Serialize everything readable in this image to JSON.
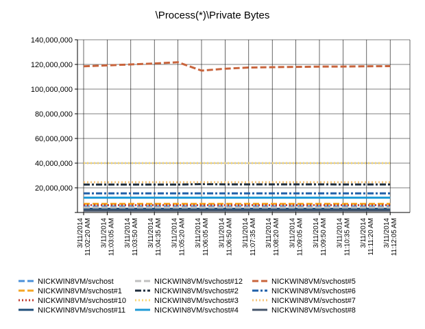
{
  "chart_data": {
    "type": "line",
    "title": "\\Process(*)\\Private Bytes",
    "ylim": [
      0,
      140000000
    ],
    "y_ticks": [
      {
        "value": 140000000,
        "label": "140,000,000"
      },
      {
        "value": 120000000,
        "label": "120,000,000"
      },
      {
        "value": 100000000,
        "label": "100,000,000"
      },
      {
        "value": 80000000,
        "label": "80,000,000"
      },
      {
        "value": 60000000,
        "label": "60,000,000"
      },
      {
        "value": 40000000,
        "label": "40,000,000"
      },
      {
        "value": 20000000,
        "label": "20,000,000"
      }
    ],
    "x_tick_labels": [
      {
        "date": "3/11/2014",
        "time": "11:02:20 AM"
      },
      {
        "date": "3/11/2014",
        "time": "11:03:05 AM"
      },
      {
        "date": "3/11/2014",
        "time": "11:03:50 AM"
      },
      {
        "date": "3/11/2014",
        "time": "11:04:35 AM"
      },
      {
        "date": "3/11/2014",
        "time": "11:05:20 AM"
      },
      {
        "date": "3/11/2014",
        "time": "11:06:05 AM"
      },
      {
        "date": "3/11/2014",
        "time": "11:06:50 AM"
      },
      {
        "date": "3/11/2014",
        "time": "11:07:35 AM"
      },
      {
        "date": "3/11/2014",
        "time": "11:08:20 AM"
      },
      {
        "date": "3/11/2014",
        "time": "11:09:05 AM"
      },
      {
        "date": "3/11/2014",
        "time": "11:09:50 AM"
      },
      {
        "date": "3/11/2014",
        "time": "11:10:35 AM"
      },
      {
        "date": "3/11/2014",
        "time": "11:11:20 AM"
      },
      {
        "date": "3/11/2014",
        "time": "11:12:05 AM"
      }
    ],
    "grid": true,
    "legend_position": "bottom",
    "series": [
      {
        "name": "NICKWIN8VM/svchost",
        "color": "#4a90d9",
        "dash": "dashed",
        "values": [
          5000000,
          5000000,
          5000000,
          5000000,
          5000000,
          5000000,
          5000000,
          5000000,
          5000000,
          5000000,
          5000000,
          5000000,
          5000000,
          5000000
        ]
      },
      {
        "name": "NICKWIN8VM/svchost#1",
        "color": "#f5a623",
        "dash": "dashed",
        "values": [
          7000000,
          7000000,
          7000000,
          7000000,
          7000000,
          7000000,
          7000000,
          7000000,
          7000000,
          7000000,
          7000000,
          7000000,
          7000000,
          7000000
        ]
      },
      {
        "name": "NICKWIN8VM/svchost#10",
        "color": "#c0392b",
        "dash": "dotted",
        "values": [
          6000000,
          6000000,
          6000000,
          6000000,
          6000000,
          6000000,
          6000000,
          6000000,
          6000000,
          6000000,
          6000000,
          6000000,
          6000000,
          6000000
        ]
      },
      {
        "name": "NICKWIN8VM/svchost#11",
        "color": "#1f4e79",
        "dash": "solid",
        "values": [
          3000000,
          3000000,
          3000000,
          3000000,
          3000000,
          3000000,
          3000000,
          3000000,
          3000000,
          3000000,
          3000000,
          3000000,
          3000000,
          3000000
        ]
      },
      {
        "name": "NICKWIN8VM/svchost#12",
        "color": "#bfbfbf",
        "dash": "dashed",
        "values": [
          4000000,
          4000000,
          4000000,
          4000000,
          4000000,
          4000000,
          4000000,
          4000000,
          4000000,
          4000000,
          4000000,
          4000000,
          4000000,
          4000000
        ]
      },
      {
        "name": "NICKWIN8VM/svchost#2",
        "color": "#1f2d3d",
        "dash": "dashdot",
        "values": [
          22600000,
          22600000,
          22600000,
          22600000,
          22600000,
          23000000,
          22800000,
          22800000,
          22800000,
          22800000,
          22800000,
          22700000,
          22700000,
          22700000
        ]
      },
      {
        "name": "NICKWIN8VM/svchost#3",
        "color": "#f7d774",
        "dash": "dotted",
        "values": [
          40000000,
          40000000,
          40000000,
          40000000,
          40000000,
          40000000,
          40000000,
          40000000,
          40000000,
          40000000,
          40000000,
          40000000,
          40000000,
          40000000
        ]
      },
      {
        "name": "NICKWIN8VM/svchost#4",
        "color": "#1e9ad6",
        "dash": "solid",
        "values": [
          12000000,
          12000000,
          12000000,
          12000000,
          12000000,
          12000000,
          12000000,
          12000000,
          12000000,
          12000000,
          12000000,
          12000000,
          12000000,
          12000000
        ]
      },
      {
        "name": "NICKWIN8VM/svchost#5",
        "color": "#c8643c",
        "dash": "dashed",
        "values": [
          118500000,
          119200000,
          120000000,
          120800000,
          121800000,
          115000000,
          116500000,
          117500000,
          117800000,
          118000000,
          118200000,
          118300000,
          118500000,
          118600000
        ]
      },
      {
        "name": "NICKWIN8VM/svchost#6",
        "color": "#1f5fa8",
        "dash": "dashdot",
        "values": [
          15500000,
          15500000,
          15500000,
          15500000,
          15500000,
          15500000,
          15500000,
          15500000,
          15500000,
          15500000,
          15500000,
          15500000,
          15500000,
          15500000
        ]
      },
      {
        "name": "NICKWIN8VM/svchost#7",
        "color": "#f5c57a",
        "dash": "dotted",
        "values": [
          24500000,
          24500000,
          24500000,
          24500000,
          24500000,
          24500000,
          24500000,
          24500000,
          24500000,
          24500000,
          24500000,
          24500000,
          24500000,
          24500000
        ]
      },
      {
        "name": "NICKWIN8VM/svchost#8",
        "color": "#44546a",
        "dash": "solid",
        "values": [
          1500000,
          1500000,
          1500000,
          1500000,
          1500000,
          1500000,
          1500000,
          1500000,
          1500000,
          1500000,
          1500000,
          1500000,
          1500000,
          1500000
        ]
      }
    ]
  }
}
